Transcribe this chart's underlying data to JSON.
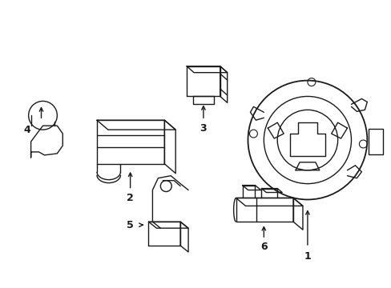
{
  "bg_color": "#ffffff",
  "line_color": "#1a1a1a",
  "line_width": 1.0,
  "figsize": [
    4.89,
    3.6
  ],
  "dpi": 100
}
